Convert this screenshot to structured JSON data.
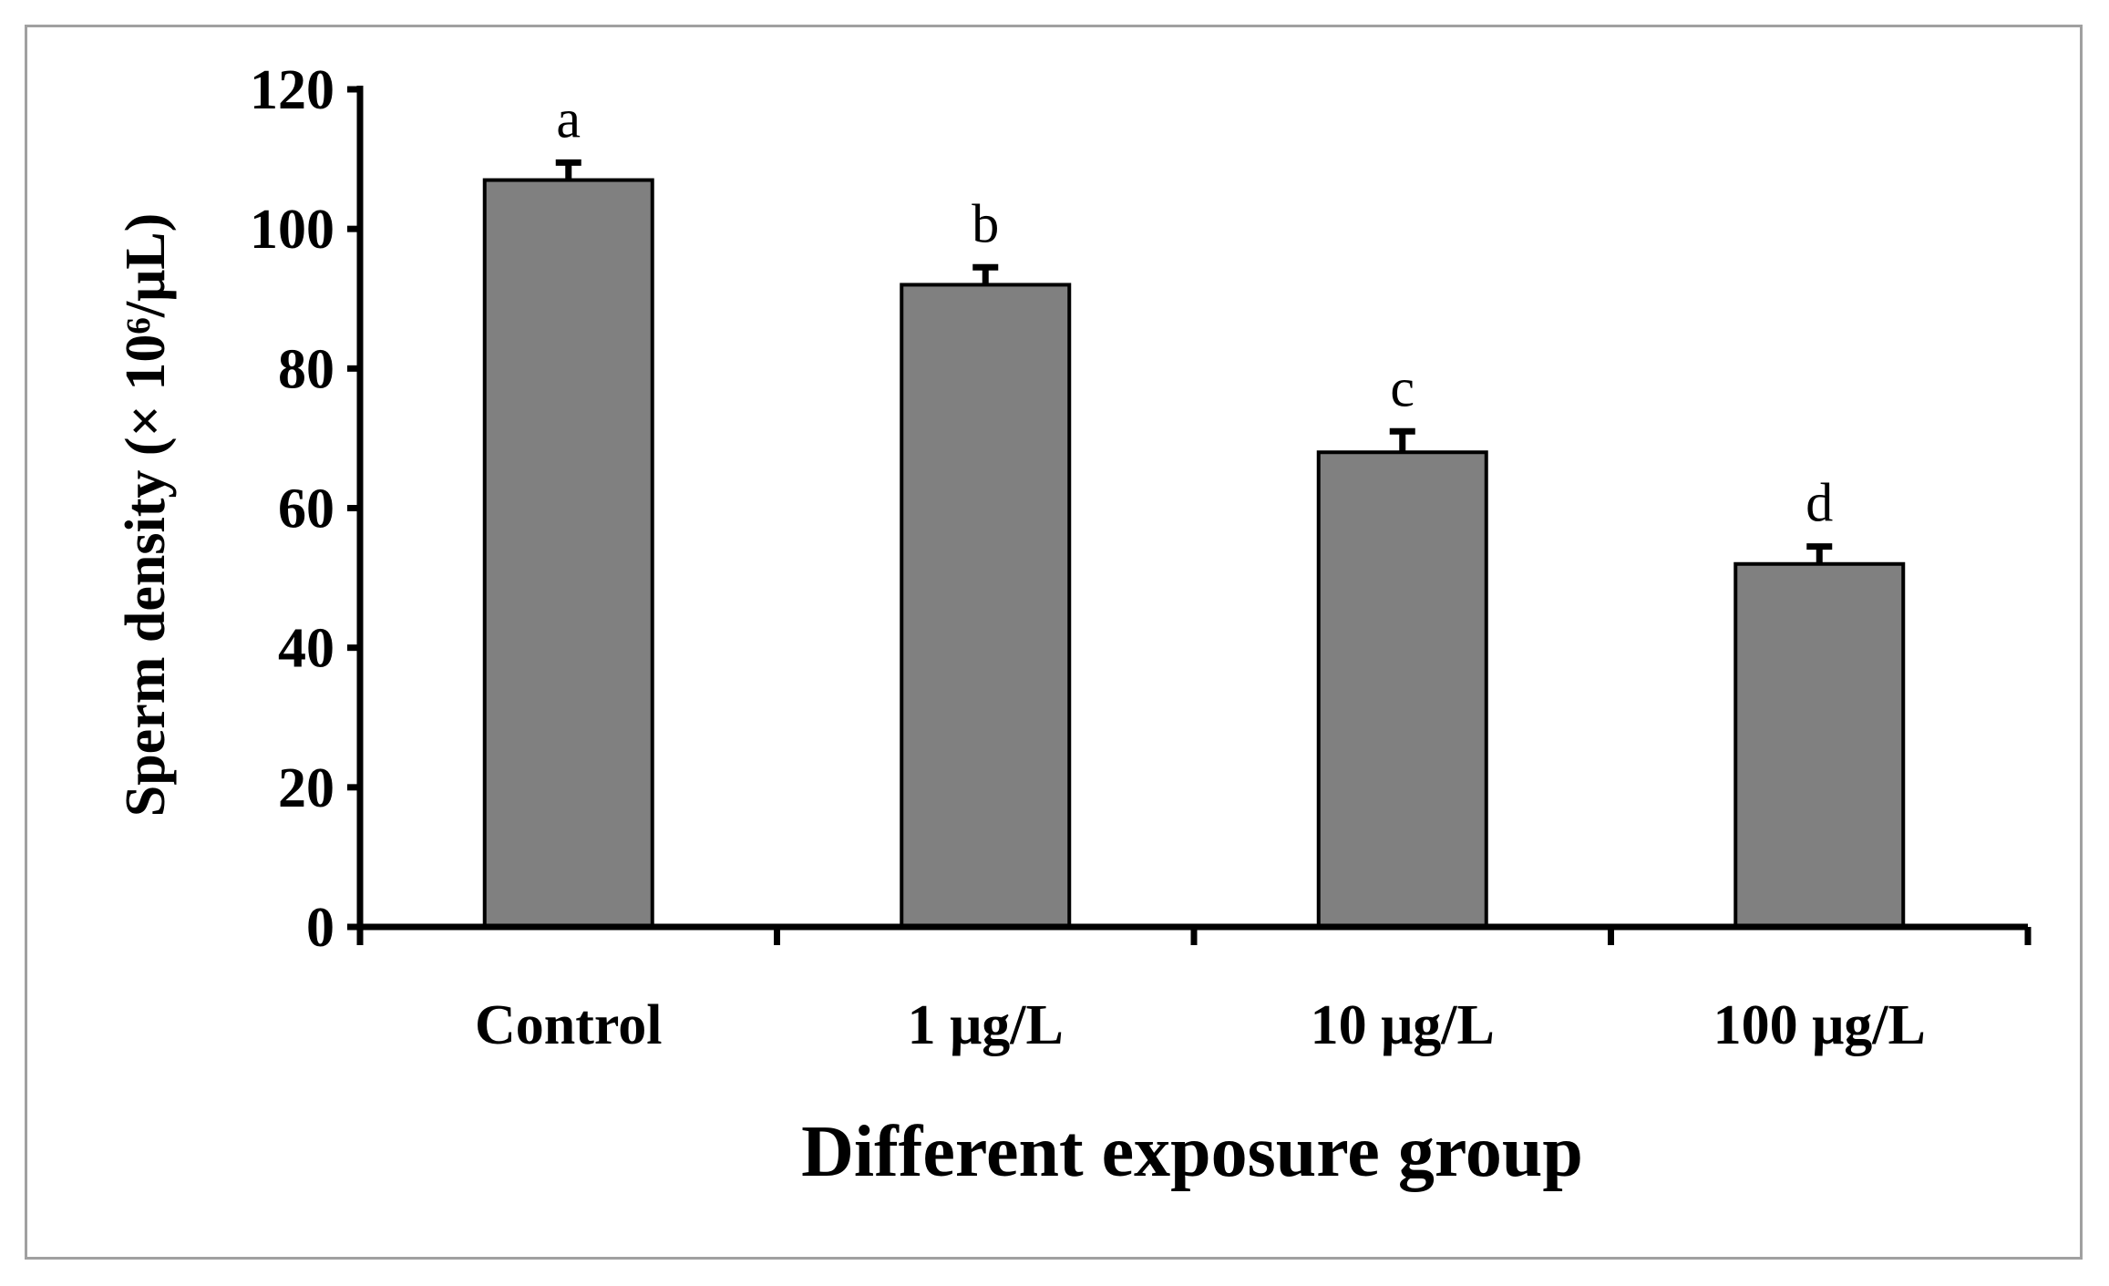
{
  "chart_data": {
    "type": "bar",
    "title": "",
    "xlabel": "Different exposure group",
    "ylabel": "Sperm density (× 10⁶/μL)",
    "categories": [
      "Control",
      "1 μg/L",
      "10 μg/L",
      "100 μg/L"
    ],
    "values": [
      107,
      92,
      68,
      52
    ],
    "errors": [
      2.5,
      2.5,
      3,
      2.5
    ],
    "significance": [
      "a",
      "b",
      "c",
      "d"
    ],
    "ylim": [
      0,
      120
    ],
    "yticks": [
      "0",
      "20",
      "40",
      "60",
      "80",
      "100",
      "120"
    ],
    "grid": false,
    "legend": "none",
    "bar_color": "#808080",
    "bar_edge_color": "#000000"
  }
}
